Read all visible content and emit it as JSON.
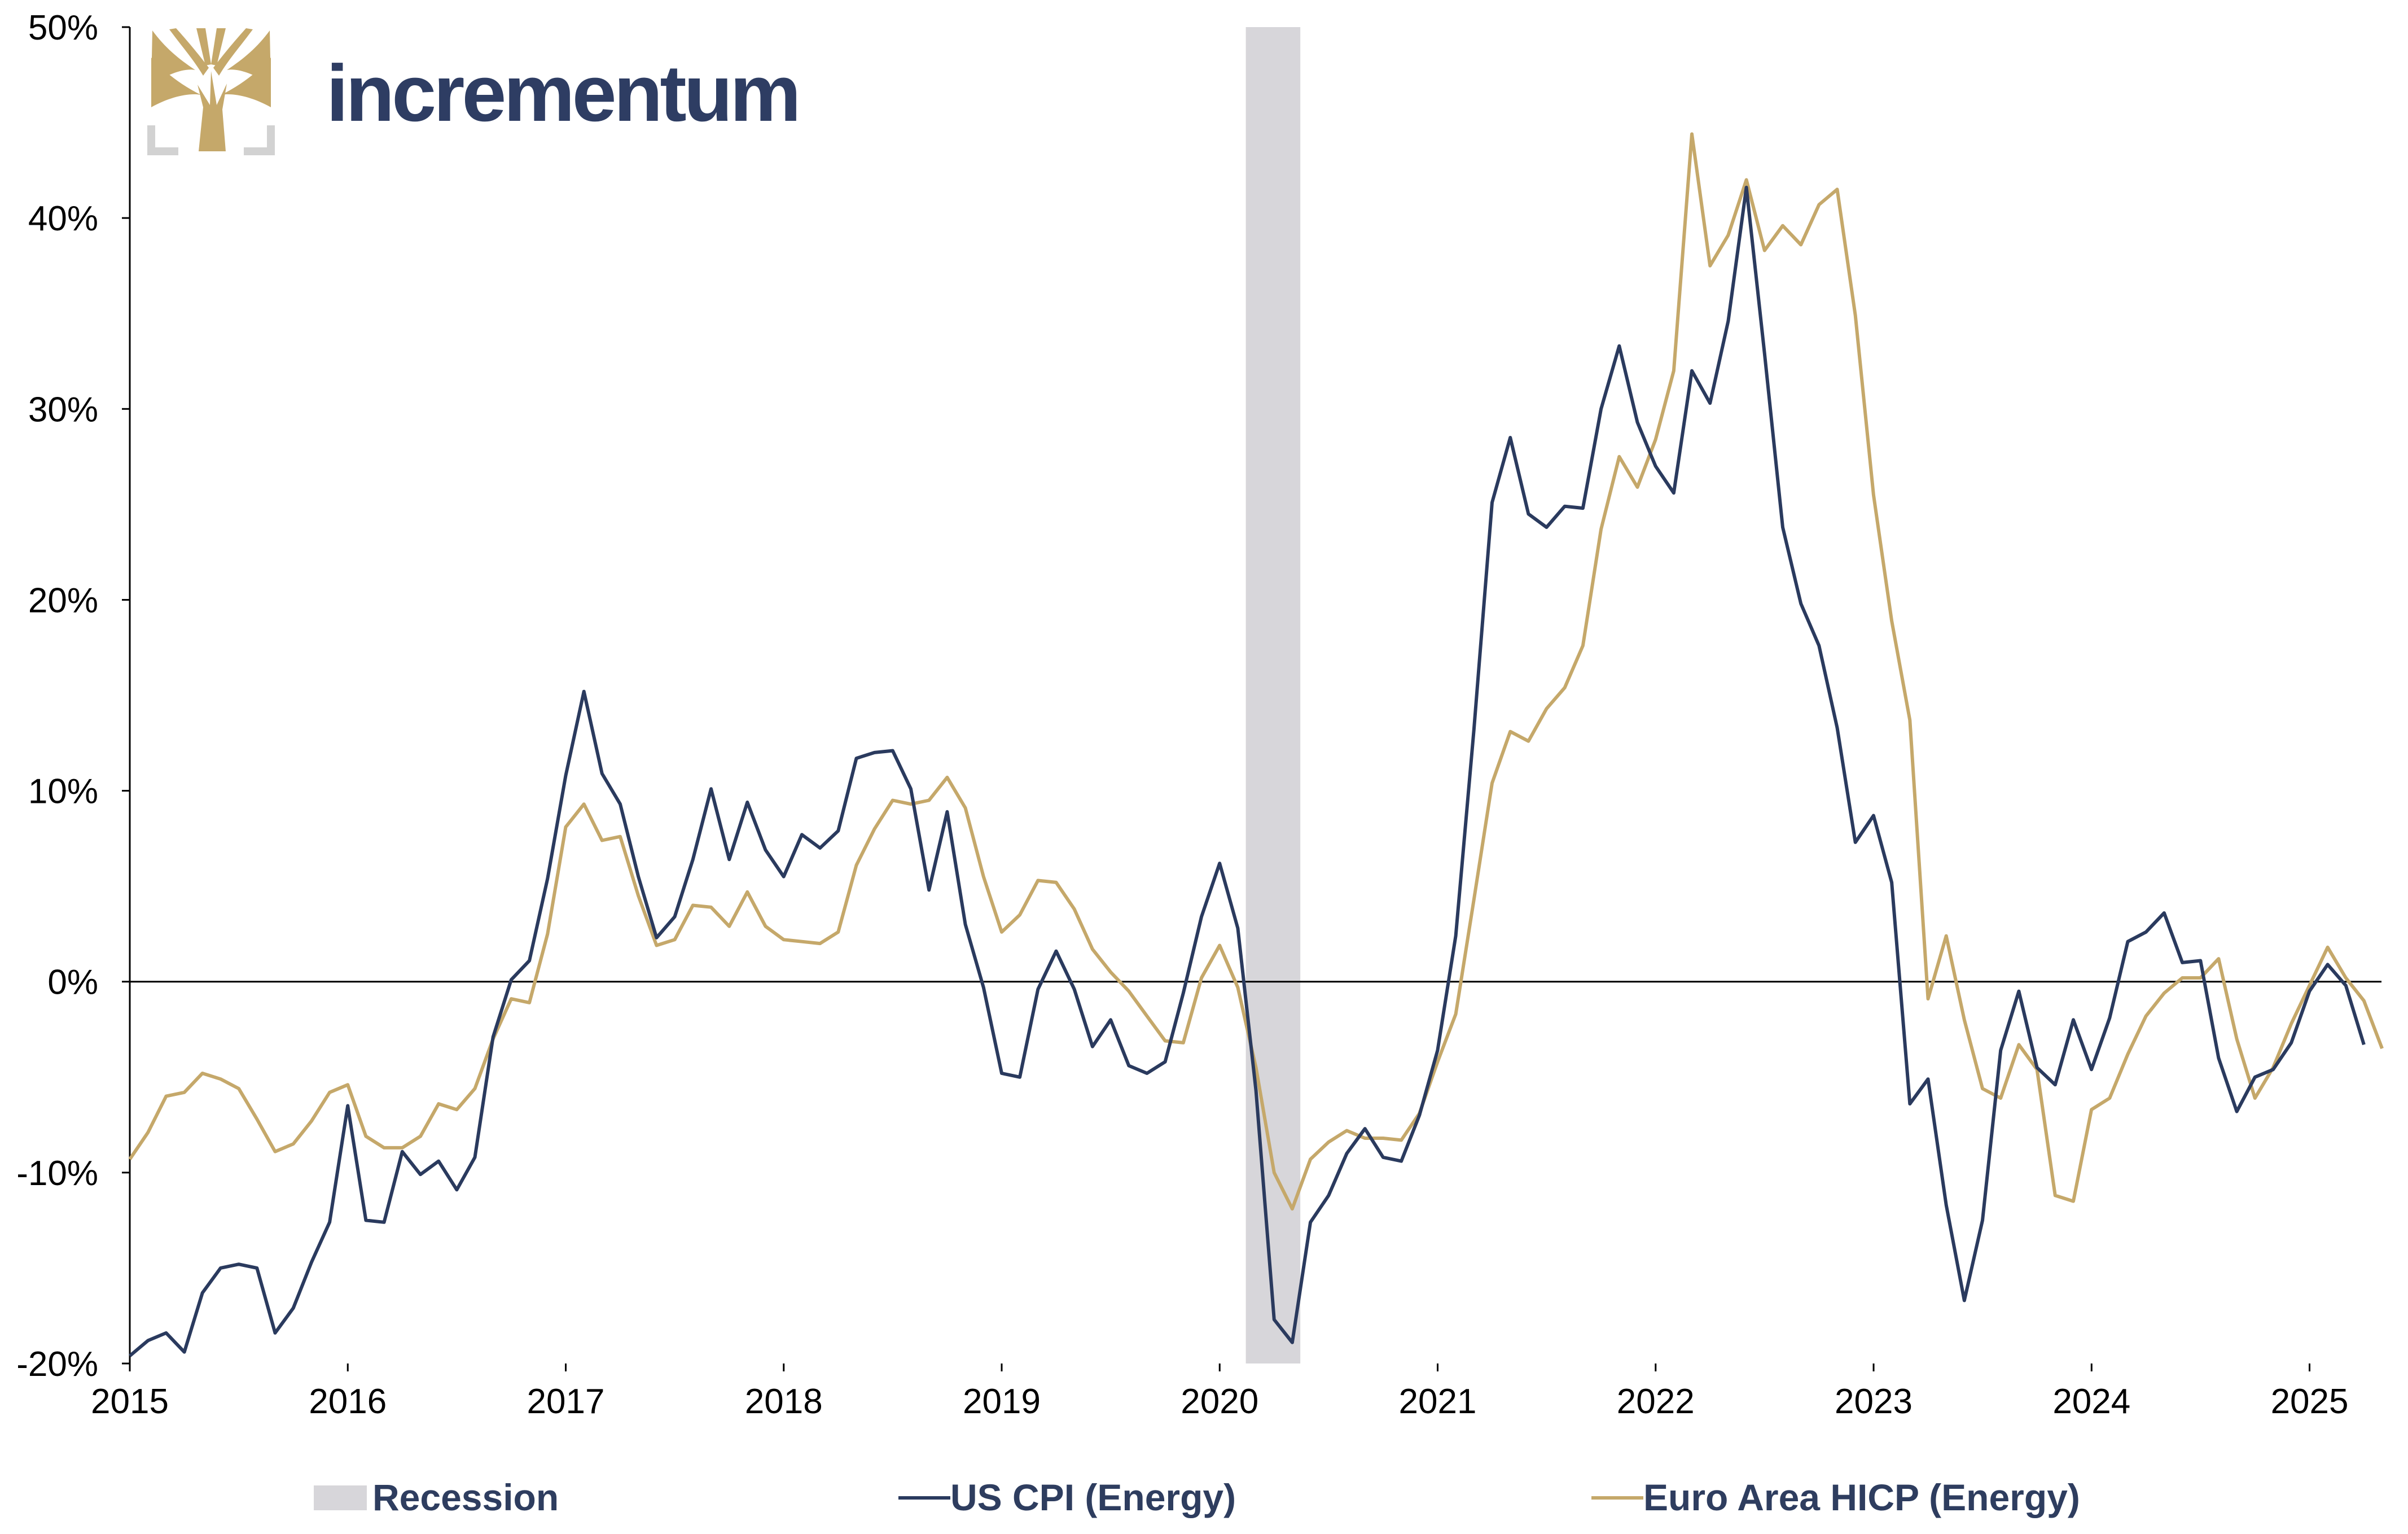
{
  "brand": {
    "name": "incrementum",
    "logo_icon": "tree-icon",
    "logo_color": "#c5a86a",
    "name_color": "#2e3d63"
  },
  "chart_data": {
    "type": "line",
    "title": "",
    "xlabel": "",
    "ylabel": "",
    "xlim": [
      2015.0,
      2025.33
    ],
    "ylim": [
      -20,
      50
    ],
    "x_ticks": [
      {
        "value": 2015,
        "label": "2015"
      },
      {
        "value": 2016,
        "label": "2016"
      },
      {
        "value": 2017,
        "label": "2017"
      },
      {
        "value": 2018,
        "label": "2018"
      },
      {
        "value": 2019,
        "label": "2019"
      },
      {
        "value": 2020,
        "label": "2020"
      },
      {
        "value": 2021,
        "label": "2021"
      },
      {
        "value": 2022,
        "label": "2022"
      },
      {
        "value": 2023,
        "label": "2023"
      },
      {
        "value": 2024,
        "label": "2024"
      },
      {
        "value": 2025,
        "label": "2025"
      }
    ],
    "y_ticks": [
      {
        "value": 50,
        "label": "50%"
      },
      {
        "value": 40,
        "label": "40%"
      },
      {
        "value": 30,
        "label": "30%"
      },
      {
        "value": 20,
        "label": "20%"
      },
      {
        "value": 10,
        "label": "10%"
      },
      {
        "value": 0,
        "label": "0%"
      },
      {
        "value": -10,
        "label": "-10%"
      },
      {
        "value": -20,
        "label": "-20%"
      }
    ],
    "grid": false,
    "zero_line": true,
    "legend_position": "bottom",
    "recession": {
      "name": "Recession",
      "start": 2020.12,
      "end": 2020.37,
      "color": "#d7d6da"
    },
    "series": [
      {
        "name": "US CPI (Energy)",
        "color": "#2a3a5e",
        "start": 2015.0,
        "step": 0.08333,
        "values": [
          -19.6,
          -18.8,
          -18.4,
          -19.4,
          -16.3,
          -15.0,
          -14.8,
          -15.0,
          -18.4,
          -17.1,
          -14.7,
          -12.6,
          -6.5,
          -12.5,
          -12.6,
          -8.9,
          -10.1,
          -9.4,
          -10.9,
          -9.2,
          -2.9,
          0.1,
          1.1,
          5.4,
          10.8,
          15.2,
          10.9,
          9.3,
          5.5,
          2.3,
          3.4,
          6.4,
          10.1,
          6.4,
          9.4,
          6.9,
          5.5,
          7.7,
          7.0,
          7.9,
          11.7,
          12.0,
          12.1,
          10.1,
          4.8,
          8.9,
          3.0,
          -0.3,
          -4.8,
          -5.0,
          -0.4,
          1.6,
          -0.4,
          -3.4,
          -2.0,
          -4.4,
          -4.8,
          -4.2,
          -0.6,
          3.4,
          6.2,
          2.8,
          -5.7,
          -17.7,
          -18.9,
          -12.6,
          -11.2,
          -9.0,
          -7.7,
          -9.2,
          -9.4,
          -7.0,
          -3.6,
          2.4,
          13.2,
          25.1,
          28.5,
          24.5,
          23.8,
          24.9,
          24.8,
          30.0,
          33.3,
          29.3,
          27.0,
          25.6,
          32.0,
          30.3,
          34.6,
          41.6,
          32.9,
          23.8,
          19.8,
          17.6,
          13.3,
          7.3,
          8.7,
          5.2,
          -6.4,
          -5.1,
          -11.7,
          -16.7,
          -12.5,
          -3.6,
          -0.5,
          -4.5,
          -5.4,
          -2.0,
          -4.6,
          -1.9,
          2.1,
          2.6,
          3.6,
          1.0,
          1.1,
          -4.0,
          -6.8,
          -5.0,
          -4.6,
          -3.2,
          -0.5,
          0.9,
          -0.2,
          -3.3
        ]
      },
      {
        "name": "Euro Area HICP (Energy)",
        "color": "#c5a86a",
        "start": 2015.0,
        "step": 0.08333,
        "values": [
          -9.3,
          -7.9,
          -6.0,
          -5.8,
          -4.8,
          -5.1,
          -5.6,
          -7.2,
          -8.9,
          -8.5,
          -7.3,
          -5.8,
          -5.4,
          -8.1,
          -8.7,
          -8.7,
          -8.1,
          -6.4,
          -6.7,
          -5.6,
          -3.0,
          -0.9,
          -1.1,
          2.5,
          8.1,
          9.3,
          7.4,
          7.6,
          4.5,
          1.9,
          2.2,
          4.0,
          3.9,
          2.9,
          4.7,
          2.9,
          2.2,
          2.1,
          2.0,
          2.6,
          6.1,
          8.0,
          9.5,
          9.3,
          9.5,
          10.7,
          9.1,
          5.5,
          2.6,
          3.5,
          5.3,
          5.2,
          3.8,
          1.7,
          0.5,
          -0.5,
          -1.8,
          -3.1,
          -3.2,
          0.2,
          1.9,
          -0.3,
          -4.5,
          -10.0,
          -11.9,
          -9.3,
          -8.4,
          -7.8,
          -8.2,
          -8.2,
          -8.3,
          -6.9,
          -4.2,
          -1.7,
          4.3,
          10.4,
          13.1,
          12.6,
          14.3,
          15.4,
          17.6,
          23.7,
          27.5,
          25.9,
          28.4,
          32.0,
          44.4,
          37.5,
          39.1,
          42.0,
          38.3,
          39.6,
          38.6,
          40.7,
          41.5,
          34.9,
          25.5,
          18.9,
          13.7,
          -0.9,
          2.4,
          -2.0,
          -5.6,
          -6.1,
          -3.3,
          -4.6,
          -11.2,
          -11.5,
          -6.7,
          -6.1,
          -3.8,
          -1.8,
          -0.6,
          0.2,
          0.2,
          1.2,
          -3.0,
          -6.1,
          -4.5,
          -2.2,
          -0.2,
          1.8,
          0.2,
          -1.0,
          -3.5
        ]
      }
    ]
  }
}
